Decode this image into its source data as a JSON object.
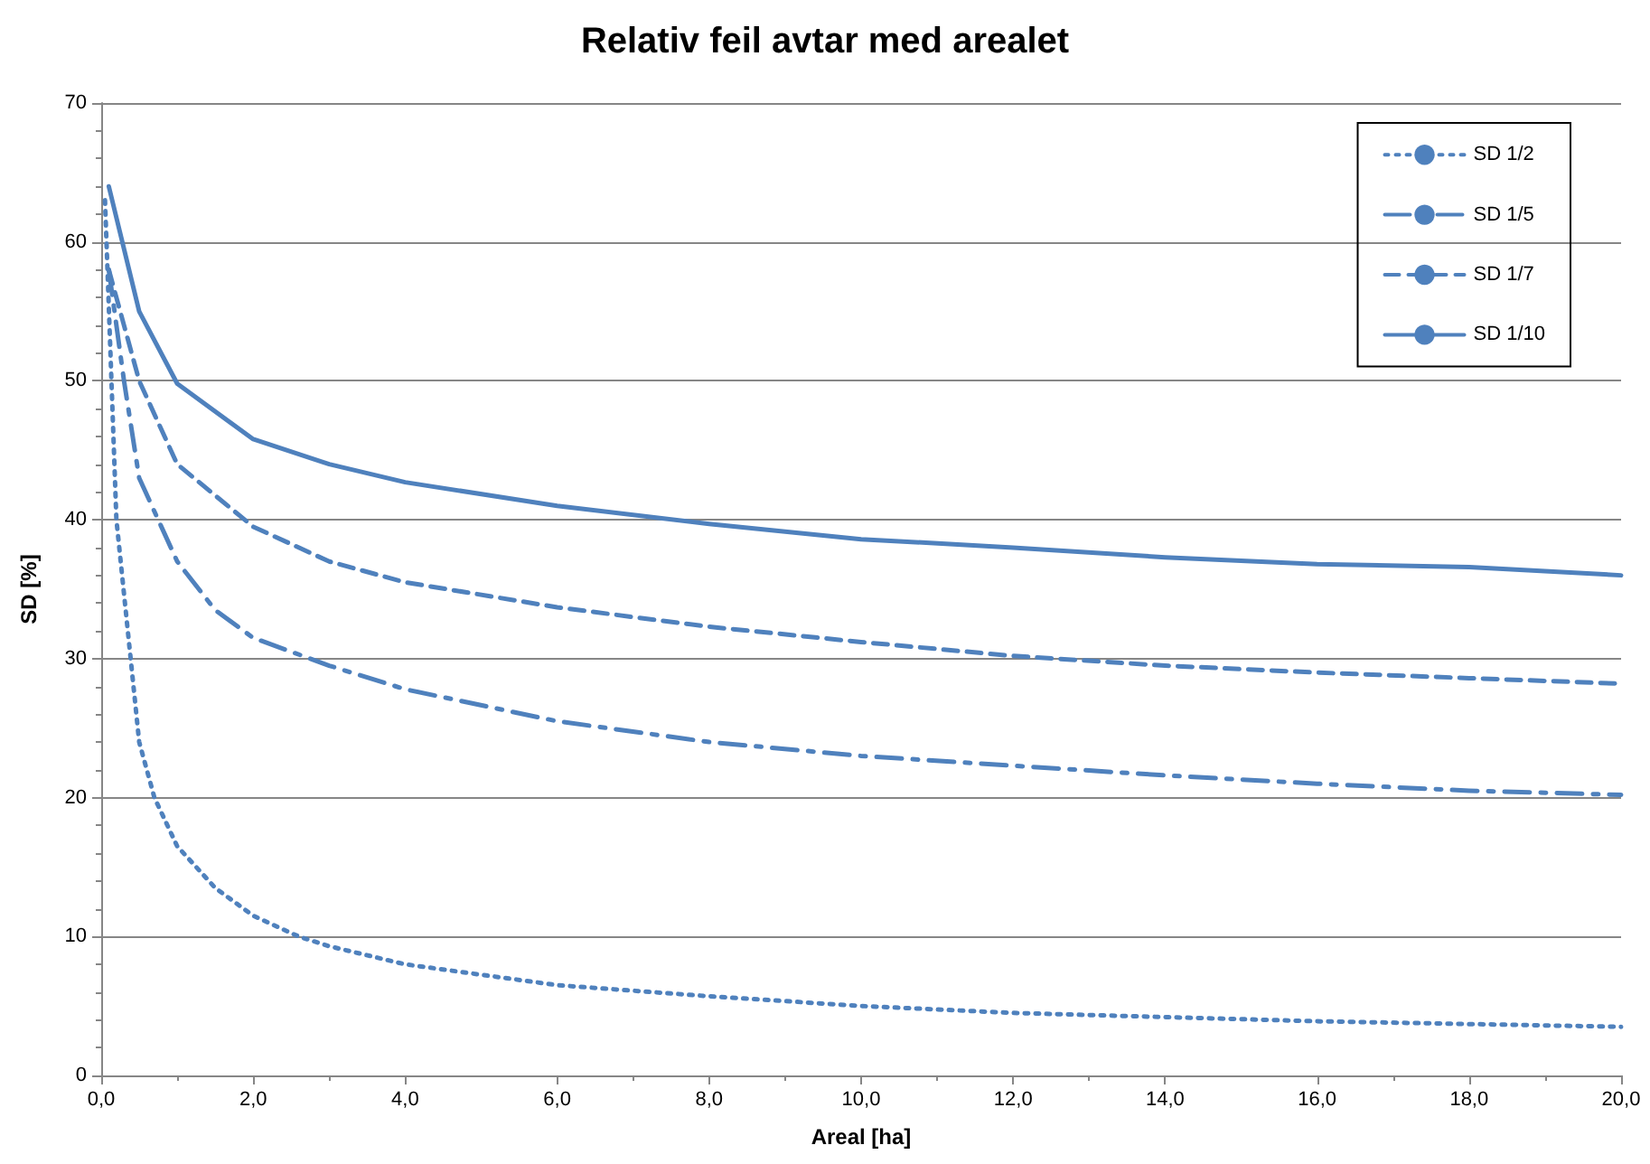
{
  "chart_data": {
    "type": "line",
    "title": "Relativ feil avtar med arealet",
    "xlabel": "Areal [ha]",
    "ylabel": "SD [%]",
    "xlim": [
      0,
      20
    ],
    "ylim": [
      0,
      70
    ],
    "xticks": [
      {
        "value": 0,
        "label": "0,0"
      },
      {
        "value": 2,
        "label": "2,0"
      },
      {
        "value": 4,
        "label": "4,0"
      },
      {
        "value": 6,
        "label": "6,0"
      },
      {
        "value": 8,
        "label": "8,0"
      },
      {
        "value": 10,
        "label": "10,0"
      },
      {
        "value": 12,
        "label": "12,0"
      },
      {
        "value": 14,
        "label": "14,0"
      },
      {
        "value": 16,
        "label": "16,0"
      },
      {
        "value": 18,
        "label": "18,0"
      },
      {
        "value": 20,
        "label": "20,0"
      }
    ],
    "yticks": [
      0,
      10,
      20,
      30,
      40,
      50,
      60,
      70
    ],
    "grid": "y",
    "legend": "top right",
    "marker": "none",
    "series": [
      {
        "name": "SD 1/2",
        "color": "#4f81bd",
        "line_style": "dotted",
        "x": [
          0.05,
          0.2,
          0.5,
          0.7,
          1,
          1.5,
          2,
          2.6,
          3,
          4,
          6,
          8,
          10,
          12,
          14,
          16,
          18,
          20
        ],
        "values": [
          63,
          40,
          24,
          20,
          16.5,
          13.5,
          11.5,
          10,
          9.3,
          8,
          6.5,
          5.7,
          5,
          4.5,
          4.2,
          3.9,
          3.7,
          3.5
        ]
      },
      {
        "name": "SD 1/5",
        "color": "#4f81bd",
        "line_style": "dashdot",
        "x": [
          0.1,
          0.3,
          0.5,
          1,
          1.5,
          2,
          3,
          4,
          6,
          8,
          10,
          12,
          14,
          16,
          18,
          20
        ],
        "values": [
          58,
          50,
          43,
          37,
          33.5,
          31.5,
          29.5,
          27.8,
          25.5,
          24,
          23,
          22.3,
          21.6,
          21,
          20.5,
          20.2
        ]
      },
      {
        "name": "SD 1/7",
        "color": "#4f81bd",
        "line_style": "dashed",
        "x": [
          0.1,
          0.5,
          1,
          2,
          3,
          4,
          6,
          8,
          10,
          12,
          14,
          16,
          18,
          20
        ],
        "values": [
          58,
          50,
          44,
          39.5,
          37,
          35.5,
          33.7,
          32.3,
          31.2,
          30.2,
          29.5,
          29,
          28.6,
          28.2
        ]
      },
      {
        "name": "SD 1/10",
        "color": "#4f81bd",
        "line_style": "solid",
        "x": [
          0.1,
          0.5,
          1,
          2,
          3,
          4,
          6,
          8,
          10,
          12,
          14,
          16,
          18,
          20
        ],
        "values": [
          64,
          55,
          49.8,
          45.8,
          44,
          42.7,
          41,
          39.7,
          38.6,
          38,
          37.3,
          36.8,
          36.6,
          36
        ]
      }
    ]
  }
}
